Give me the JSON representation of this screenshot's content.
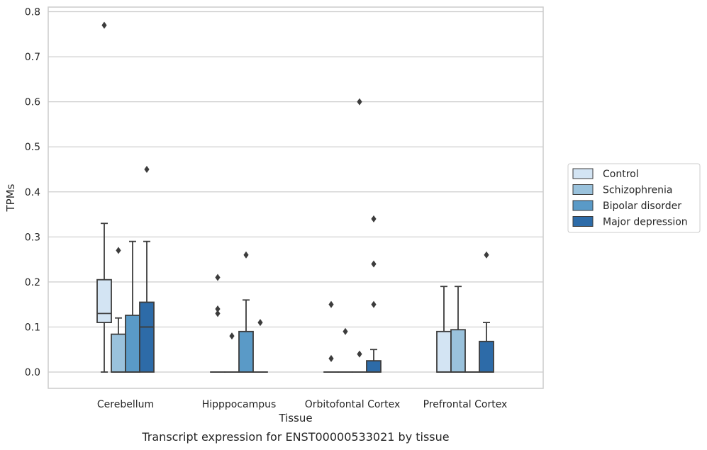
{
  "chart_data": {
    "type": "box",
    "caption": "Transcript expression for ENST00000533021 by tissue",
    "xlabel": "Tissue",
    "ylabel": "TPMs",
    "ylim": [
      -0.037,
      0.81
    ],
    "yticks": [
      0.0,
      0.1,
      0.2,
      0.3,
      0.4,
      0.5,
      0.6,
      0.7,
      0.8
    ],
    "ytick_labels": [
      "0.0",
      "0.1",
      "0.2",
      "0.3",
      "0.4",
      "0.5",
      "0.6",
      "0.7",
      "0.8"
    ],
    "grid": "horizontal",
    "legend_position": "right",
    "categories": [
      "Cerebellum",
      "Hipppocampus",
      "Orbitofontal Cortex",
      "Prefrontal Cortex"
    ],
    "series": [
      {
        "name": "Control",
        "color": "#d3e4f3",
        "boxes": [
          {
            "whislo": 0.0,
            "q1": 0.11,
            "med": 0.13,
            "q3": 0.205,
            "whishi": 0.33,
            "fliers": [
              0.77
            ]
          },
          {
            "whislo": 0.0,
            "q1": 0.0,
            "med": 0.0,
            "q3": 0.0,
            "whishi": 0.0,
            "fliers": [
              0.13,
              0.14,
              0.21
            ]
          },
          {
            "whislo": 0.0,
            "q1": 0.0,
            "med": 0.0,
            "q3": 0.0,
            "whishi": 0.0,
            "fliers": [
              0.03,
              0.15
            ]
          },
          {
            "whislo": 0.0,
            "q1": 0.0,
            "med": 0.0,
            "q3": 0.09,
            "whishi": 0.19,
            "fliers": []
          }
        ]
      },
      {
        "name": "Schizophrenia",
        "color": "#9ac2dc",
        "boxes": [
          {
            "whislo": 0.0,
            "q1": 0.0,
            "med": 0.0,
            "q3": 0.084,
            "whishi": 0.12,
            "fliers": [
              0.27
            ]
          },
          {
            "whislo": 0.0,
            "q1": 0.0,
            "med": 0.0,
            "q3": 0.0,
            "whishi": 0.0,
            "fliers": [
              0.08
            ]
          },
          {
            "whislo": 0.0,
            "q1": 0.0,
            "med": 0.0,
            "q3": 0.0,
            "whishi": 0.0,
            "fliers": [
              0.09
            ]
          },
          {
            "whislo": 0.0,
            "q1": 0.0,
            "med": 0.0,
            "q3": 0.094,
            "whishi": 0.19,
            "fliers": []
          }
        ]
      },
      {
        "name": "Bipolar disorder",
        "color": "#5a9ac7",
        "boxes": [
          {
            "whislo": 0.0,
            "q1": 0.0,
            "med": 0.0,
            "q3": 0.126,
            "whishi": 0.29,
            "fliers": []
          },
          {
            "whislo": 0.0,
            "q1": 0.0,
            "med": 0.0,
            "q3": 0.09,
            "whishi": 0.16,
            "fliers": [
              0.26
            ]
          },
          {
            "whislo": 0.0,
            "q1": 0.0,
            "med": 0.0,
            "q3": 0.0,
            "whishi": 0.0,
            "fliers": [
              0.04,
              0.6
            ]
          },
          {
            "whislo": 0.0,
            "q1": 0.0,
            "med": 0.0,
            "q3": 0.0,
            "whishi": 0.0,
            "fliers": []
          }
        ]
      },
      {
        "name": "Major depression",
        "color": "#2d6ba8",
        "boxes": [
          {
            "whislo": 0.0,
            "q1": 0.0,
            "med": 0.1,
            "q3": 0.155,
            "whishi": 0.29,
            "fliers": [
              0.45
            ]
          },
          {
            "whislo": 0.0,
            "q1": 0.0,
            "med": 0.0,
            "q3": 0.0,
            "whishi": 0.0,
            "fliers": [
              0.11
            ]
          },
          {
            "whislo": 0.0,
            "q1": 0.0,
            "med": 0.0,
            "q3": 0.025,
            "whishi": 0.05,
            "fliers": [
              0.15,
              0.24,
              0.34
            ]
          },
          {
            "whislo": 0.0,
            "q1": 0.0,
            "med": 0.0,
            "q3": 0.068,
            "whishi": 0.11,
            "fliers": [
              0.26
            ]
          }
        ]
      }
    ]
  }
}
